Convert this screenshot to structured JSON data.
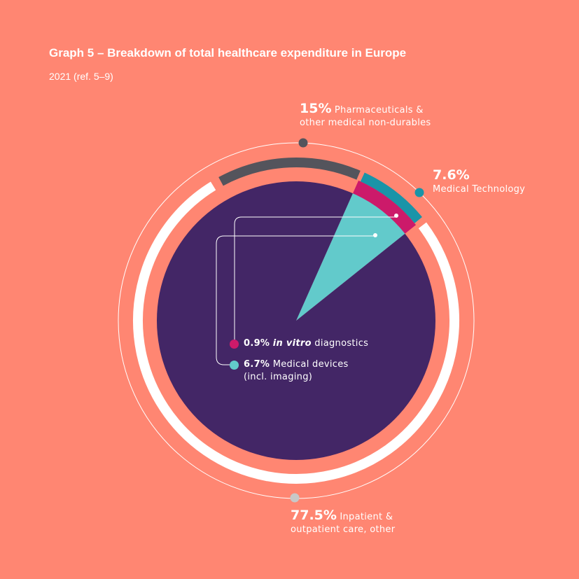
{
  "title": "Graph 5 – Breakdown of total healthcare expenditure in Europe",
  "subtitle": "2021 (ref. 5–9)",
  "colors": {
    "background": "#FF8672",
    "inpatient": "#FFFFFF",
    "pharma": "#54545C",
    "medtech": "#1A94A8",
    "ivd": "#CC1A6A",
    "devices": "#62CACB",
    "inner_disc": "#432666"
  },
  "chart_data": {
    "type": "pie",
    "title": "Graph 5 – Breakdown of total healthcare expenditure in Europe",
    "subtitle": "2021 (ref. 5–9)",
    "outer_ring": [
      {
        "pct": "77.5%",
        "value": 77.5,
        "label_line1": "Inpatient &",
        "label_line2": "outpatient care, other",
        "color": "#FFFFFF"
      },
      {
        "pct": "15%",
        "value": 15,
        "label_line1": "Pharmaceuticals &",
        "label_line2": "other medical non-durables",
        "color": "#54545C"
      },
      {
        "pct": "7.6%",
        "value": 7.6,
        "label_line1": "Medical Technology",
        "label_line2": "",
        "color": "#1A94A8"
      }
    ],
    "medtech_breakdown": [
      {
        "pct": "0.9%",
        "value": 0.9,
        "label_italic": "in vitro",
        "label": "diagnostics",
        "color": "#CC1A6A"
      },
      {
        "pct": "6.7%",
        "value": 6.7,
        "label_line1": "Medical devices",
        "label_line2": "(incl. imaging)",
        "color": "#62CACB"
      }
    ]
  }
}
